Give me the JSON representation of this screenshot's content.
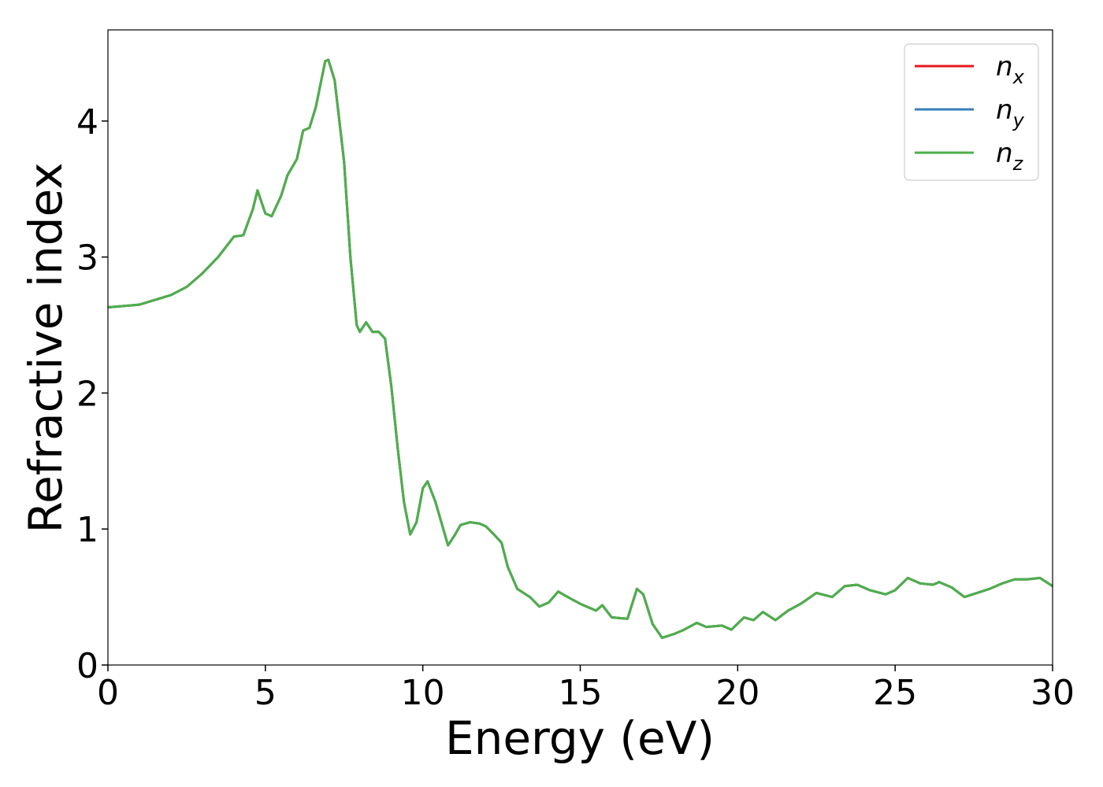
{
  "chart_data": {
    "type": "line",
    "xlabel": "Energy (eV)",
    "ylabel": "Refractive index",
    "x": [
      0,
      1,
      2,
      2.5,
      3,
      3.5,
      4,
      4.3,
      4.6,
      4.75,
      5,
      5.2,
      5.5,
      5.7,
      6,
      6.2,
      6.4,
      6.6,
      6.9,
      7,
      7.2,
      7.5,
      7.7,
      7.9,
      8,
      8.2,
      8.4,
      8.6,
      8.8,
      9,
      9.2,
      9.4,
      9.6,
      9.8,
      10,
      10.15,
      10.4,
      10.8,
      11,
      11.2,
      11.5,
      11.8,
      12,
      12.3,
      12.5,
      12.7,
      13,
      13.4,
      13.7,
      14,
      14.3,
      14.6,
      15,
      15.5,
      15.7,
      16,
      16.5,
      16.8,
      17,
      17.3,
      17.6,
      18,
      18.3,
      18.7,
      19,
      19.5,
      19.8,
      20.2,
      20.5,
      20.8,
      21.2,
      21.6,
      22,
      22.5,
      23,
      23.4,
      23.8,
      24.2,
      24.7,
      25,
      25.4,
      25.8,
      26.2,
      26.4,
      26.8,
      27.2,
      27.6,
      28,
      28.4,
      28.8,
      29.2,
      29.6,
      30
    ],
    "series": [
      {
        "name": "n",
        "name_subscript": "x",
        "color": "#e41a1c",
        "values": [
          2.63,
          2.65,
          2.72,
          2.78,
          2.88,
          3.0,
          3.15,
          3.16,
          3.35,
          3.49,
          3.32,
          3.3,
          3.45,
          3.6,
          3.72,
          3.93,
          3.95,
          4.1,
          4.44,
          4.45,
          4.3,
          3.7,
          3.0,
          2.5,
          2.45,
          2.52,
          2.45,
          2.45,
          2.4,
          2.05,
          1.6,
          1.2,
          0.96,
          1.05,
          1.3,
          1.35,
          1.2,
          0.88,
          0.95,
          1.03,
          1.05,
          1.04,
          1.02,
          0.95,
          0.9,
          0.72,
          0.56,
          0.5,
          0.43,
          0.46,
          0.54,
          0.5,
          0.45,
          0.4,
          0.44,
          0.35,
          0.34,
          0.56,
          0.52,
          0.3,
          0.2,
          0.23,
          0.26,
          0.31,
          0.28,
          0.29,
          0.26,
          0.35,
          0.33,
          0.39,
          0.33,
          0.4,
          0.45,
          0.53,
          0.5,
          0.58,
          0.59,
          0.55,
          0.52,
          0.55,
          0.64,
          0.6,
          0.59,
          0.61,
          0.57,
          0.5,
          0.53,
          0.56,
          0.6,
          0.63,
          0.63,
          0.64,
          0.58
        ]
      },
      {
        "name": "n",
        "name_subscript": "y",
        "color": "#377eb8",
        "values": [
          2.63,
          2.65,
          2.72,
          2.78,
          2.88,
          3.0,
          3.15,
          3.16,
          3.35,
          3.49,
          3.32,
          3.3,
          3.45,
          3.6,
          3.72,
          3.93,
          3.95,
          4.1,
          4.44,
          4.45,
          4.3,
          3.7,
          3.0,
          2.5,
          2.45,
          2.52,
          2.45,
          2.45,
          2.4,
          2.05,
          1.6,
          1.2,
          0.96,
          1.05,
          1.3,
          1.35,
          1.2,
          0.88,
          0.95,
          1.03,
          1.05,
          1.04,
          1.02,
          0.95,
          0.9,
          0.72,
          0.56,
          0.5,
          0.43,
          0.46,
          0.54,
          0.5,
          0.45,
          0.4,
          0.44,
          0.35,
          0.34,
          0.56,
          0.52,
          0.3,
          0.2,
          0.23,
          0.26,
          0.31,
          0.28,
          0.29,
          0.26,
          0.35,
          0.33,
          0.39,
          0.33,
          0.4,
          0.45,
          0.53,
          0.5,
          0.58,
          0.59,
          0.55,
          0.52,
          0.55,
          0.64,
          0.6,
          0.59,
          0.61,
          0.57,
          0.5,
          0.53,
          0.56,
          0.6,
          0.63,
          0.63,
          0.64,
          0.58
        ]
      },
      {
        "name": "n",
        "name_subscript": "z",
        "color": "#4daf4a",
        "values": [
          2.63,
          2.65,
          2.72,
          2.78,
          2.88,
          3.0,
          3.15,
          3.16,
          3.35,
          3.49,
          3.32,
          3.3,
          3.45,
          3.6,
          3.72,
          3.93,
          3.95,
          4.1,
          4.44,
          4.45,
          4.3,
          3.7,
          3.0,
          2.5,
          2.45,
          2.52,
          2.45,
          2.45,
          2.4,
          2.05,
          1.6,
          1.2,
          0.96,
          1.05,
          1.3,
          1.35,
          1.2,
          0.88,
          0.95,
          1.03,
          1.05,
          1.04,
          1.02,
          0.95,
          0.9,
          0.72,
          0.56,
          0.5,
          0.43,
          0.46,
          0.54,
          0.5,
          0.45,
          0.4,
          0.44,
          0.35,
          0.34,
          0.56,
          0.52,
          0.3,
          0.2,
          0.23,
          0.26,
          0.31,
          0.28,
          0.29,
          0.26,
          0.35,
          0.33,
          0.39,
          0.33,
          0.4,
          0.45,
          0.53,
          0.5,
          0.58,
          0.59,
          0.55,
          0.52,
          0.55,
          0.64,
          0.6,
          0.59,
          0.61,
          0.57,
          0.5,
          0.53,
          0.56,
          0.6,
          0.63,
          0.63,
          0.64,
          0.58
        ]
      }
    ],
    "xlim": [
      0,
      30
    ],
    "xticks": [
      0,
      5,
      10,
      15,
      20,
      25,
      30
    ],
    "ylim": [
      0,
      4.67
    ],
    "yticks": [
      0,
      1,
      2,
      3,
      4
    ],
    "legend": "upper right"
  }
}
